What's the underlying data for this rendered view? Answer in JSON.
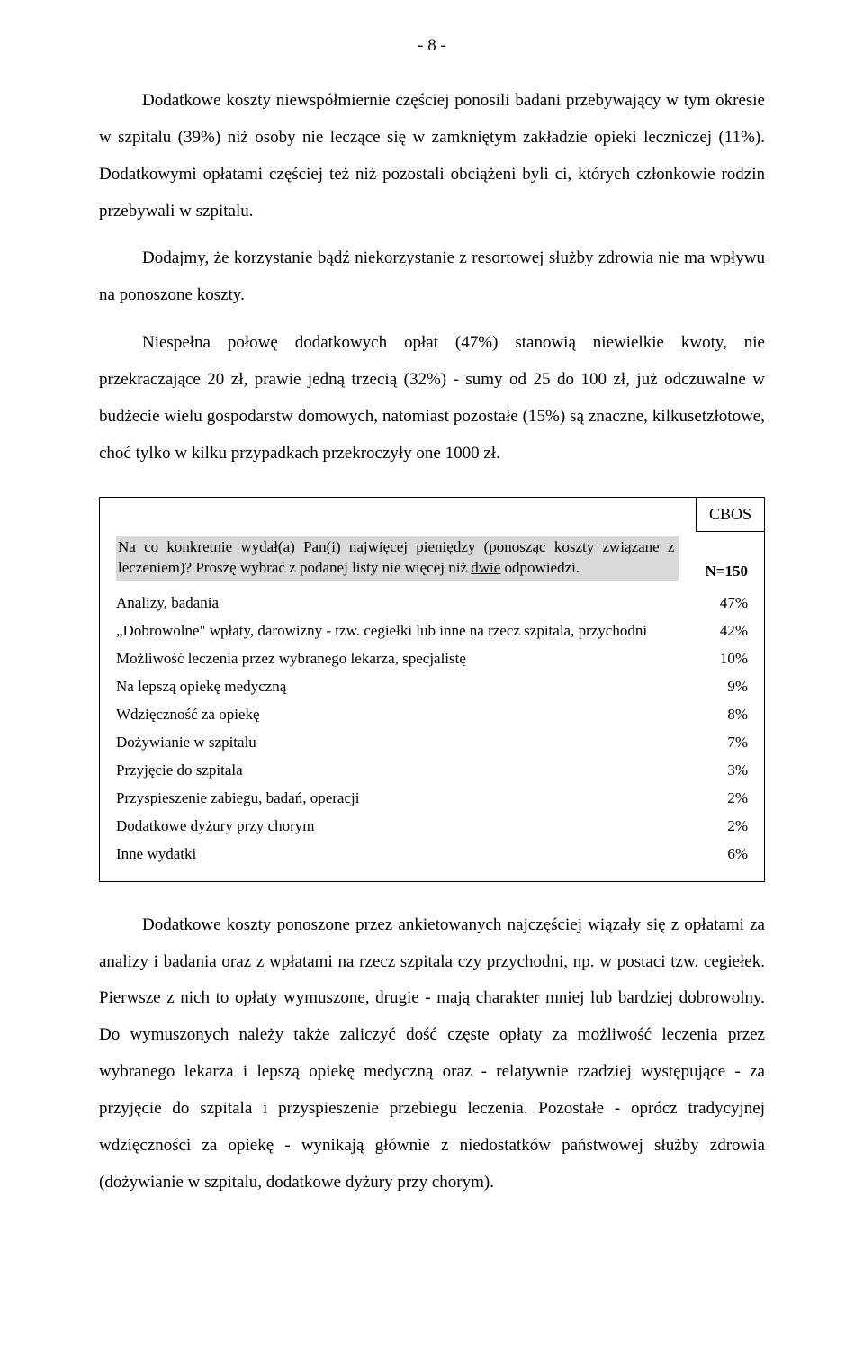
{
  "pageNumber": "- 8 -",
  "para1": "Dodatkowe koszty niewspółmiernie częściej ponosili badani przebywający w tym okresie w  szpitalu (39%) niż osoby nie leczące się w zamkniętym zakładzie opieki leczniczej (11%). Dodatkowymi opłatami częściej też niż pozostali obciążeni byli ci, których członkowie rodzin przebywali w szpitalu.",
  "para2": "Dodajmy, że korzystanie bądź niekorzystanie z resortowej służby zdrowia nie ma wpływu na ponoszone koszty.",
  "para3": "Niespełna połowę dodatkowych opłat (47%) stanowią niewielkie kwoty, nie przekraczające 20 zł, prawie jedną trzecią (32%) - sumy od 25 do 100 zł, już odczuwalne w budżecie wielu gospodarstw domowych, natomiast pozostałe (15%) są znaczne, kilkusetzłotowe, choć tylko w kilku przypadkach przekroczyły one 1000 zł.",
  "cbos": "CBOS",
  "question_part1": "Na co konkretnie wydał(a) Pan(i) najwięcej pieniędzy  (ponosząc koszty związane z leczeniem)? Proszę wybrać z podanej listy nie więcej niż ",
  "question_underlined": "dwie",
  "question_part2": " odpowiedzi.",
  "nValue": "N=150",
  "rows": [
    {
      "label": "Analizy, badania",
      "value": "47%"
    },
    {
      "label": "„Dobrowolne\" wpłaty, darowizny - tzw. cegiełki lub inne na rzecz szpitala, przychodni",
      "value": "42%"
    },
    {
      "label": "Możliwość leczenia przez wybranego lekarza, specjalistę",
      "value": "10%"
    },
    {
      "label": "Na lepszą opiekę medyczną",
      "value": "9%"
    },
    {
      "label": "Wdzięczność za opiekę",
      "value": "8%"
    },
    {
      "label": "Dożywianie w szpitalu",
      "value": "7%"
    },
    {
      "label": "Przyjęcie do szpitala",
      "value": "3%"
    },
    {
      "label": "Przyspieszenie zabiegu, badań, operacji",
      "value": "2%"
    },
    {
      "label": "Dodatkowe dyżury przy chorym",
      "value": "2%"
    },
    {
      "label": "Inne wydatki",
      "value": "6%"
    }
  ],
  "para4": "Dodatkowe koszty ponoszone przez ankietowanych najczęściej wiązały się z opłatami za analizy i badania oraz z wpłatami na rzecz szpitala czy przychodni, np. w postaci tzw. cegiełek. Pierwsze z nich to opłaty wymuszone, drugie - mają charakter mniej lub bardziej dobrowolny. Do wymuszonych należy także zaliczyć dość częste opłaty za możliwość leczenia przez wybranego lekarza i lepszą opiekę medyczną oraz - relatywnie rzadziej występujące - za przyjęcie do szpitala i przyspieszenie przebiegu leczenia. Pozostałe - oprócz tradycyjnej wdzięczności za opiekę - wynikają głównie z niedostatków państwowej służby zdrowia (dożywianie w szpitalu, dodatkowe dyżury przy chorym)."
}
